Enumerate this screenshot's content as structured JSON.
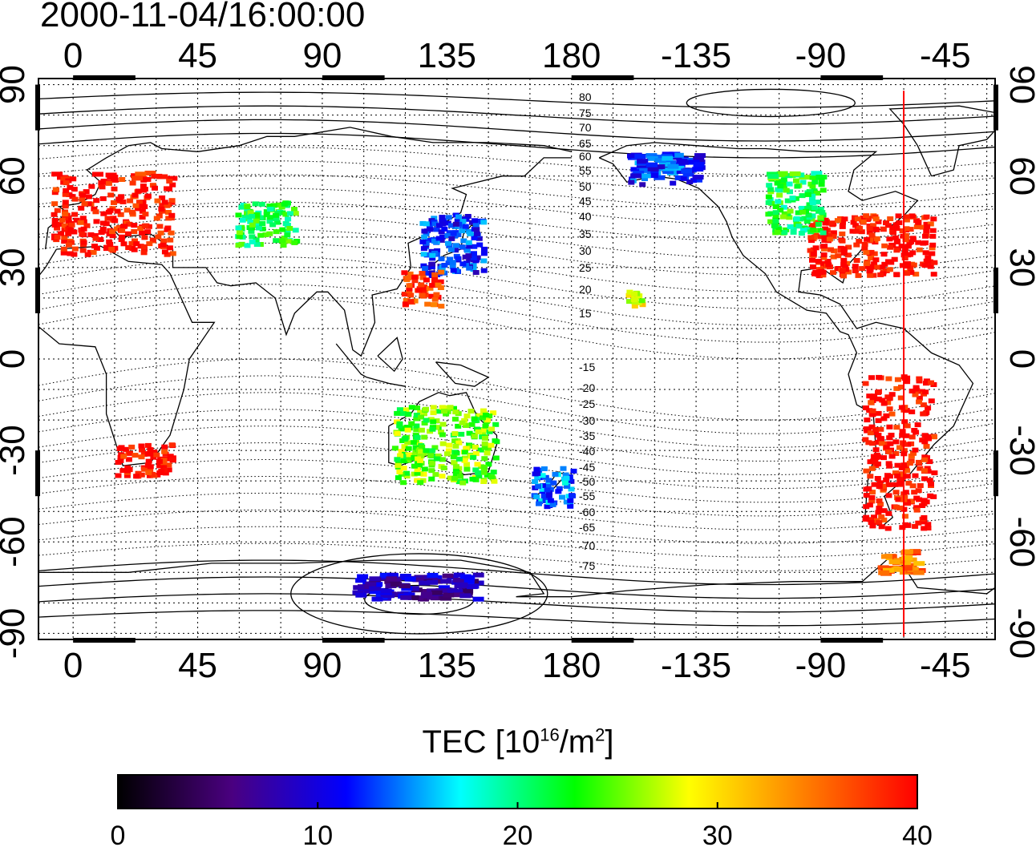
{
  "title": "2000-11-04/16:00:00",
  "map": {
    "lon_ticks": [
      {
        "lon": 0,
        "label": "0"
      },
      {
        "lon": 45,
        "label": "45"
      },
      {
        "lon": 90,
        "label": "90"
      },
      {
        "lon": 135,
        "label": "135"
      },
      {
        "lon": 180,
        "label": "180"
      },
      {
        "lon": 225,
        "label": "-135"
      },
      {
        "lon": 270,
        "label": "-90"
      },
      {
        "lon": 315,
        "label": "-45"
      }
    ],
    "lat_ticks": [
      {
        "lat": 90,
        "label": "90"
      },
      {
        "lat": 60,
        "label": "60"
      },
      {
        "lat": 30,
        "label": "30"
      },
      {
        "lat": 0,
        "label": "0"
      },
      {
        "lat": -30,
        "label": "-30"
      },
      {
        "lat": -60,
        "label": "-60"
      },
      {
        "lat": -90,
        "label": "-90"
      }
    ],
    "lon_range": [
      -12.5,
      333
    ],
    "lat_range": [
      -92,
      92
    ],
    "grid": true,
    "sun_meridian_lon": 300,
    "sun_meridian_color": "#ff0000",
    "contour_labels": [
      "80",
      "75",
      "70",
      "65",
      "60",
      "55",
      "50",
      "45",
      "40",
      "35",
      "30",
      "25",
      "20",
      "15",
      "-15",
      "-20",
      "-25",
      "-30",
      "-35",
      "-40",
      "-45",
      "-50",
      "-55",
      "-60",
      "-65",
      "-70",
      "-75"
    ]
  },
  "colorbar": {
    "title_main": "TEC  [10",
    "title_sup1": "16",
    "title_mid": "/m",
    "title_sup2": "2",
    "title_end": "]",
    "min": 0,
    "max": 40,
    "tick_labels": [
      "0",
      "10",
      "20",
      "30",
      "40"
    ],
    "stops": [
      "#000000",
      "#4a0080",
      "#0000ff",
      "#00ffff",
      "#00ff00",
      "#ffff00",
      "#ff8000",
      "#ff0000"
    ]
  },
  "data_patches": [
    {
      "region": "Europe",
      "lon": [
        -8,
        35
      ],
      "lat": [
        35,
        62
      ],
      "tec": 40
    },
    {
      "region": "North America",
      "lon": [
        265,
        310
      ],
      "lat": [
        28,
        48
      ],
      "tec": 40
    },
    {
      "region": "North America north",
      "lon": [
        250,
        270
      ],
      "lat": [
        42,
        62
      ],
      "tec": 22
    },
    {
      "region": "Alaska",
      "lon": [
        200,
        225
      ],
      "lat": [
        58,
        68
      ],
      "tec": 12
    },
    {
      "region": "Japan",
      "lon": [
        125,
        148
      ],
      "lat": [
        28,
        48
      ],
      "tec": 12
    },
    {
      "region": "East China",
      "lon": [
        118,
        132
      ],
      "lat": [
        18,
        30
      ],
      "tec": 38
    },
    {
      "region": "Central Asia",
      "lon": [
        58,
        80
      ],
      "lat": [
        38,
        52
      ],
      "tec": 22
    },
    {
      "region": "South Africa",
      "lon": [
        15,
        35
      ],
      "lat": [
        -38,
        -27
      ],
      "tec": 40
    },
    {
      "region": "South America",
      "lon": [
        285,
        310
      ],
      "lat": [
        -55,
        -5
      ],
      "tec": 40
    },
    {
      "region": "Australia",
      "lon": [
        115,
        152
      ],
      "lat": [
        -40,
        -15
      ],
      "tec": 25
    },
    {
      "region": "New Zealand",
      "lon": [
        165,
        180
      ],
      "lat": [
        -48,
        -35
      ],
      "tec": 14
    },
    {
      "region": "Hawaii",
      "lon": [
        198,
        205
      ],
      "lat": [
        18,
        24
      ],
      "tec": 28
    },
    {
      "region": "Antarctic Peninsula",
      "lon": [
        290,
        305
      ],
      "lat": [
        -70,
        -62
      ],
      "tec": 35
    },
    {
      "region": "Antarctica",
      "lon": [
        100,
        145
      ],
      "lat": [
        -78,
        -70
      ],
      "tec": 8
    }
  ]
}
